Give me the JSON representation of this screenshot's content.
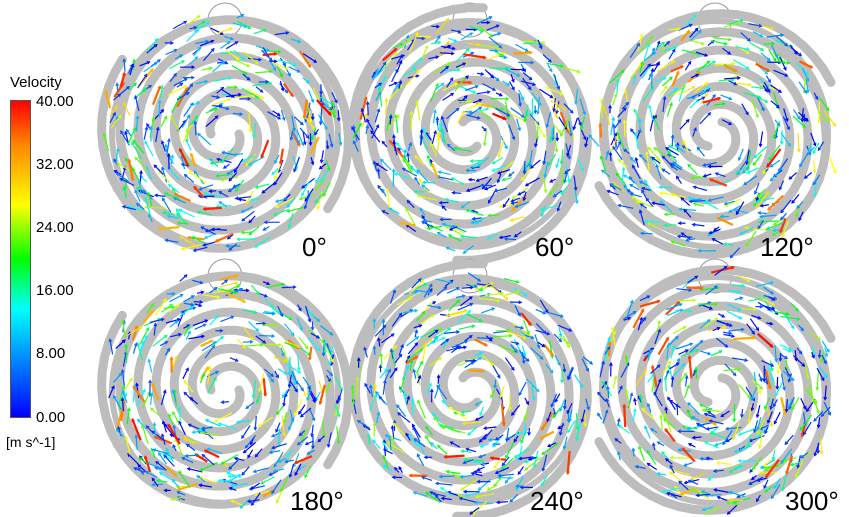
{
  "legend": {
    "title": "Velocity",
    "ticks": [
      "40.00",
      "32.00",
      "24.00",
      "16.00",
      "8.00",
      "0.00"
    ],
    "unit": "[m s^-1]",
    "range": [
      0,
      40
    ],
    "colors": [
      "#ff0000",
      "#ffaa00",
      "#ffff00",
      "#00ff00",
      "#00ffff",
      "#0088ff",
      "#0000ff"
    ]
  },
  "panels": [
    {
      "label": "0°",
      "seed": 11
    },
    {
      "label": "60°",
      "seed": 23
    },
    {
      "label": "120°",
      "seed": 37
    },
    {
      "label": "180°",
      "seed": 41
    },
    {
      "label": "240°",
      "seed": 53
    },
    {
      "label": "300°",
      "seed": 67
    }
  ],
  "colors": {
    "scroll": "#bdbdbd",
    "guide_circle": "#999999"
  }
}
